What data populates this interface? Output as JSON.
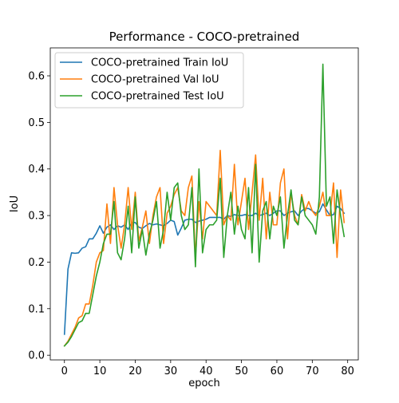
{
  "chart_data": {
    "type": "line",
    "title": "Performance - COCO-pretrained",
    "xlabel": "epoch",
    "ylabel": "IoU",
    "xlim": [
      -4,
      83
    ],
    "ylim": [
      -0.01,
      0.66
    ],
    "xticks": [
      0,
      10,
      20,
      30,
      40,
      50,
      60,
      70,
      80
    ],
    "yticks": [
      0.0,
      0.1,
      0.2,
      0.3,
      0.4,
      0.5,
      0.6
    ],
    "ytick_labels": [
      "0.0",
      "0.1",
      "0.2",
      "0.3",
      "0.4",
      "0.5",
      "0.6"
    ],
    "grid": false,
    "legend_position": "upper-left",
    "x": [
      0,
      1,
      2,
      3,
      4,
      5,
      6,
      7,
      8,
      9,
      10,
      11,
      12,
      13,
      14,
      15,
      16,
      17,
      18,
      19,
      20,
      21,
      22,
      23,
      24,
      25,
      26,
      27,
      28,
      29,
      30,
      31,
      32,
      33,
      34,
      35,
      36,
      37,
      38,
      39,
      40,
      41,
      42,
      43,
      44,
      45,
      46,
      47,
      48,
      49,
      50,
      51,
      52,
      53,
      54,
      55,
      56,
      57,
      58,
      59,
      60,
      61,
      62,
      63,
      64,
      65,
      66,
      67,
      68,
      69,
      70,
      71,
      72,
      73,
      74,
      75,
      76,
      77,
      78,
      79
    ],
    "series": [
      {
        "name": "COCO-pretrained Train IoU",
        "color": "#1f77b4",
        "values": [
          0.045,
          0.185,
          0.22,
          0.219,
          0.22,
          0.23,
          0.233,
          0.25,
          0.25,
          0.262,
          0.278,
          0.262,
          0.275,
          0.28,
          0.27,
          0.278,
          0.275,
          0.28,
          0.27,
          0.285,
          0.285,
          0.275,
          0.272,
          0.278,
          0.283,
          0.28,
          0.282,
          0.28,
          0.278,
          0.283,
          0.29,
          0.287,
          0.258,
          0.273,
          0.29,
          0.292,
          0.292,
          0.285,
          0.288,
          0.29,
          0.292,
          0.296,
          0.296,
          0.296,
          0.296,
          0.292,
          0.3,
          0.298,
          0.302,
          0.3,
          0.3,
          0.302,
          0.3,
          0.3,
          0.305,
          0.3,
          0.302,
          0.305,
          0.3,
          0.305,
          0.31,
          0.31,
          0.3,
          0.305,
          0.308,
          0.31,
          0.3,
          0.31,
          0.315,
          0.315,
          0.31,
          0.305,
          0.308,
          0.325,
          0.312,
          0.3,
          0.302,
          0.32,
          0.315,
          0.305
        ]
      },
      {
        "name": "COCO-pretrained Val IoU",
        "color": "#ff7f0e",
        "values": [
          0.02,
          0.03,
          0.045,
          0.06,
          0.08,
          0.085,
          0.11,
          0.11,
          0.15,
          0.2,
          0.22,
          0.225,
          0.325,
          0.24,
          0.36,
          0.28,
          0.23,
          0.28,
          0.36,
          0.27,
          0.35,
          0.245,
          0.275,
          0.31,
          0.24,
          0.3,
          0.34,
          0.36,
          0.24,
          0.305,
          0.32,
          0.345,
          0.36,
          0.31,
          0.3,
          0.36,
          0.385,
          0.21,
          0.33,
          0.25,
          0.33,
          0.32,
          0.31,
          0.3,
          0.44,
          0.28,
          0.3,
          0.29,
          0.41,
          0.28,
          0.33,
          0.38,
          0.27,
          0.35,
          0.43,
          0.29,
          0.38,
          0.25,
          0.35,
          0.28,
          0.28,
          0.37,
          0.4,
          0.25,
          0.35,
          0.3,
          0.28,
          0.345,
          0.31,
          0.33,
          0.31,
          0.3,
          0.32,
          0.35,
          0.3,
          0.3,
          0.37,
          0.21,
          0.355,
          0.285
        ]
      },
      {
        "name": "COCO-pretrained Test IoU",
        "color": "#2ca02c",
        "values": [
          0.02,
          0.028,
          0.04,
          0.055,
          0.07,
          0.074,
          0.09,
          0.09,
          0.13,
          0.17,
          0.2,
          0.24,
          0.26,
          0.26,
          0.33,
          0.22,
          0.205,
          0.25,
          0.32,
          0.22,
          0.34,
          0.23,
          0.27,
          0.215,
          0.26,
          0.29,
          0.33,
          0.23,
          0.27,
          0.35,
          0.29,
          0.36,
          0.37,
          0.3,
          0.27,
          0.28,
          0.36,
          0.19,
          0.4,
          0.22,
          0.27,
          0.28,
          0.28,
          0.29,
          0.38,
          0.21,
          0.3,
          0.35,
          0.26,
          0.32,
          0.27,
          0.25,
          0.36,
          0.22,
          0.41,
          0.2,
          0.31,
          0.33,
          0.25,
          0.32,
          0.3,
          0.34,
          0.23,
          0.3,
          0.355,
          0.29,
          0.28,
          0.34,
          0.3,
          0.29,
          0.28,
          0.26,
          0.34,
          0.625,
          0.32,
          0.34,
          0.24,
          0.355,
          0.3,
          0.255
        ]
      }
    ]
  }
}
